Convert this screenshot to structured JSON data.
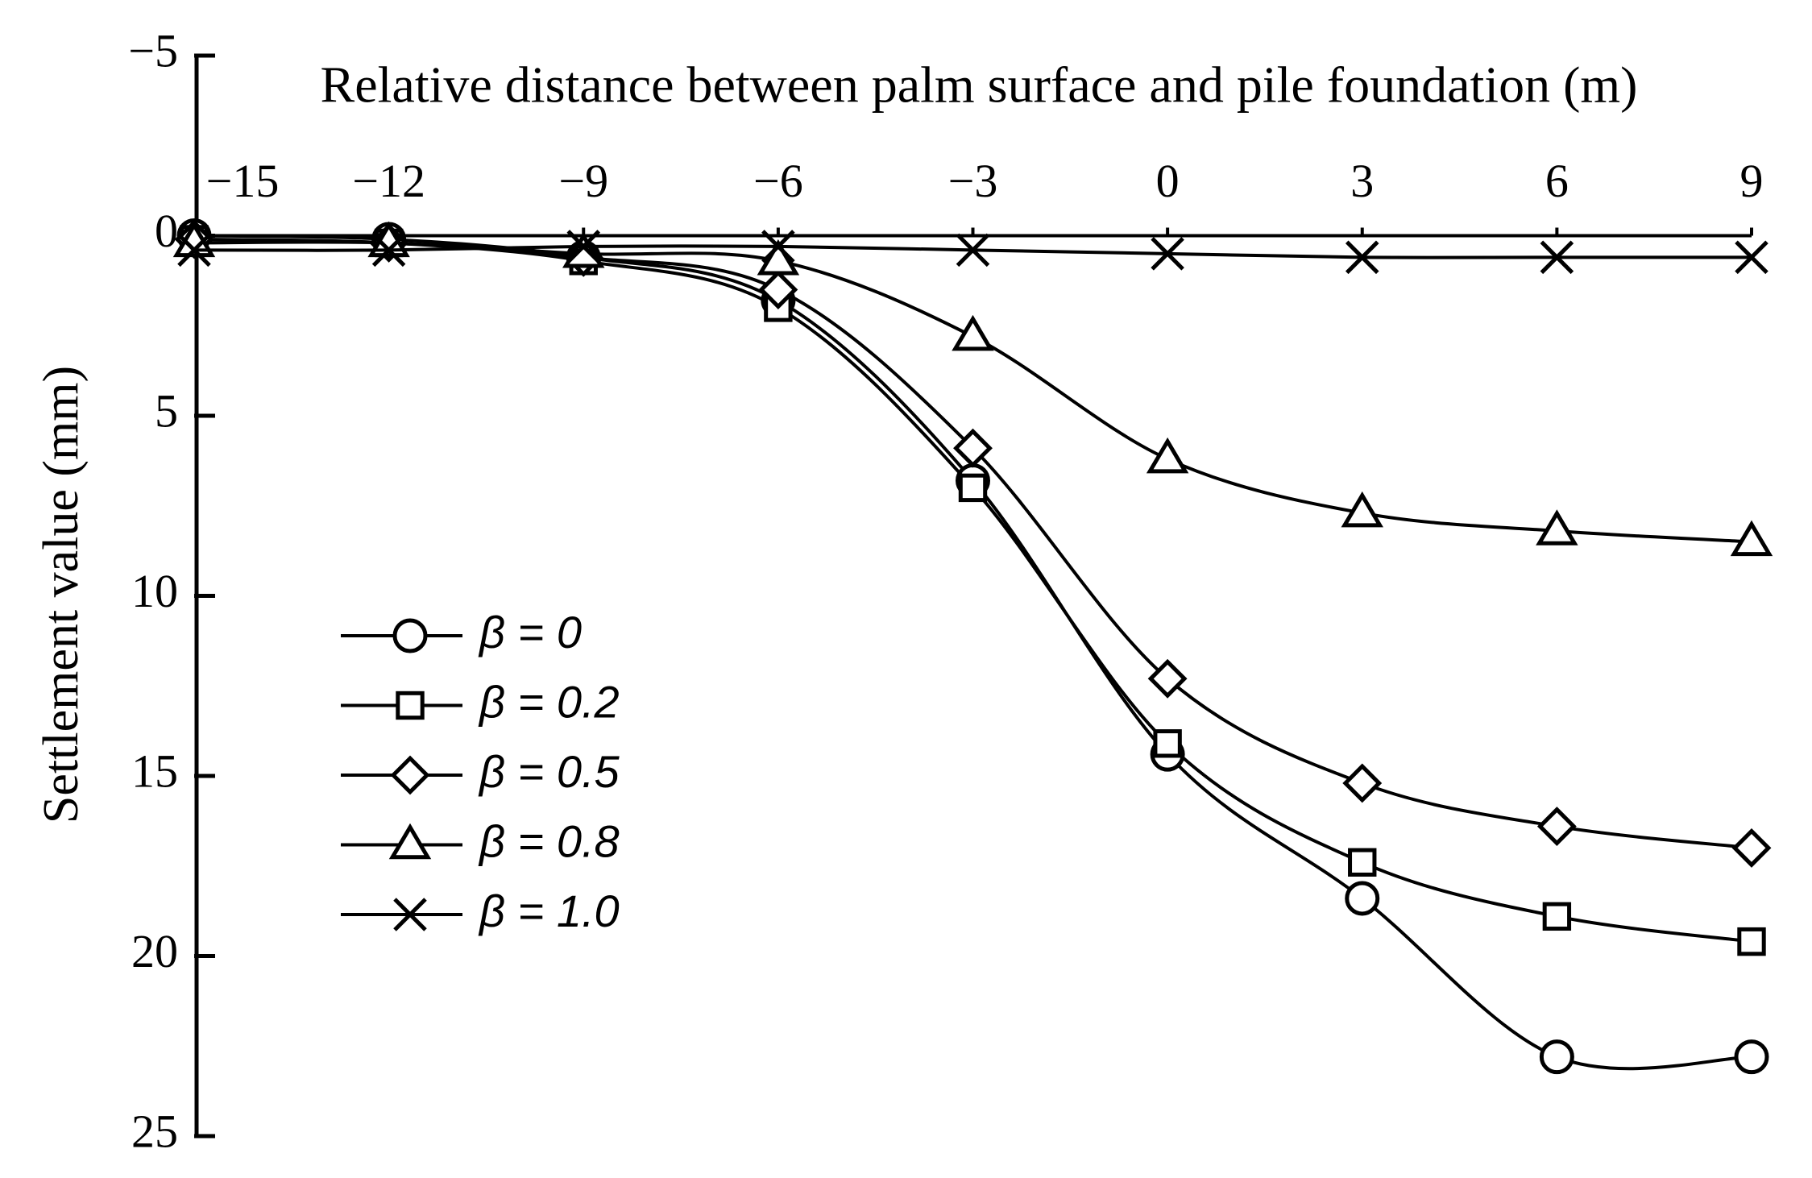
{
  "chart_data": {
    "type": "line",
    "x_label": "Relative distance between palm surface and pile foundation (m)",
    "y_label": "Settlement value (mm)",
    "x": [
      -15,
      -12,
      -9,
      -6,
      -3,
      0,
      3,
      6,
      9
    ],
    "series": [
      {
        "name": "β = 0",
        "color": "#000000",
        "marker": "circle",
        "values": [
          0,
          0.1,
          0.6,
          1.8,
          6.8,
          14.4,
          18.4,
          22.8,
          22.8
        ]
      },
      {
        "name": "β = 0.2",
        "color": "#000000",
        "marker": "square",
        "values": [
          0.1,
          0.2,
          0.7,
          2.0,
          7.0,
          14.1,
          17.4,
          18.9,
          19.6
        ]
      },
      {
        "name": "β = 0.5",
        "color": "#000000",
        "marker": "diamond",
        "values": [
          0.1,
          0.2,
          0.6,
          1.5,
          5.9,
          12.3,
          15.2,
          16.4,
          17.0
        ]
      },
      {
        "name": "β = 0.8",
        "color": "#000000",
        "marker": "triangle",
        "values": [
          0.2,
          0.2,
          0.5,
          0.7,
          2.8,
          6.2,
          7.7,
          8.2,
          8.5
        ]
      },
      {
        "name": "β = 1.0",
        "color": "#000000",
        "marker": "x",
        "values": [
          0.4,
          0.4,
          0.3,
          0.3,
          0.4,
          0.5,
          0.6,
          0.6,
          0.6
        ]
      }
    ],
    "xlim": [
      -15,
      9
    ],
    "xticks": [
      {
        "value": -15,
        "label": "−15"
      },
      {
        "value": -12,
        "label": "−12"
      },
      {
        "value": -9,
        "label": "−9"
      },
      {
        "value": -6,
        "label": "−6"
      },
      {
        "value": -3,
        "label": "−3"
      },
      0,
      3,
      6,
      9
    ],
    "ylim": [
      -5,
      25
    ],
    "yticks": [
      {
        "value": -5,
        "label": "−5"
      },
      0,
      5,
      10,
      15,
      20,
      25
    ],
    "y_inverted": true,
    "legend": "lower left",
    "grid": false
  }
}
